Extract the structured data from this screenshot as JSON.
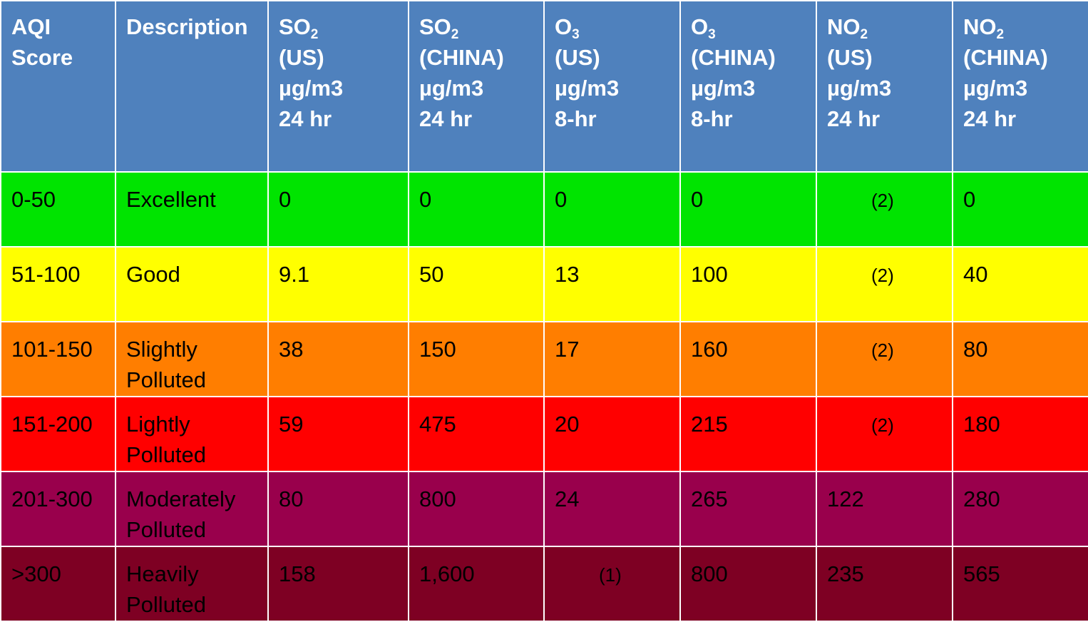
{
  "chart_data": {
    "type": "table",
    "headers": [
      {
        "lines": [
          "AQI",
          "Score"
        ]
      },
      {
        "lines": [
          "Description"
        ]
      },
      {
        "formula_base": "SO",
        "formula_sub": "2",
        "lines": [
          "(US)",
          "µg/m3",
          "24 hr"
        ]
      },
      {
        "formula_base": "SO",
        "formula_sub": "2",
        "lines": [
          "(CHINA)",
          "µg/m3",
          "24 hr"
        ]
      },
      {
        "formula_base": "O",
        "formula_sub": "3",
        "lines": [
          "(US)",
          "µg/m3",
          "8-hr"
        ]
      },
      {
        "formula_base": "O",
        "formula_sub": "3",
        "lines": [
          "(CHINA)",
          "µg/m3",
          "8-hr"
        ]
      },
      {
        "formula_base": "NO",
        "formula_sub": "2",
        "lines": [
          "(US)",
          "µg/m3",
          "24 hr"
        ]
      },
      {
        "formula_base": "NO",
        "formula_sub": "2",
        "lines": [
          "(CHINA)",
          "µg/m3",
          "24 hr"
        ]
      }
    ],
    "rows": [
      {
        "color": "#00e400",
        "text_color": "#000000",
        "cells": [
          [
            "0-50"
          ],
          [
            "Excellent"
          ],
          [
            "0"
          ],
          [
            "0"
          ],
          [
            "0"
          ],
          [
            "0"
          ],
          [
            "(2)"
          ],
          [
            "0"
          ]
        ]
      },
      {
        "color": "#ffff00",
        "text_color": "#000000",
        "cells": [
          [
            "51-100"
          ],
          [
            "Good"
          ],
          [
            "9.1"
          ],
          [
            "50"
          ],
          [
            "13"
          ],
          [
            "100"
          ],
          [
            "(2)"
          ],
          [
            "40"
          ]
        ]
      },
      {
        "color": "#ff7e00",
        "text_color": "#000000",
        "cells": [
          [
            "101-150"
          ],
          [
            "Slightly",
            "Polluted"
          ],
          [
            "38"
          ],
          [
            "150"
          ],
          [
            "17"
          ],
          [
            "160"
          ],
          [
            "(2)"
          ],
          [
            "80"
          ]
        ]
      },
      {
        "color": "#ff0000",
        "text_color": "#000000",
        "cells": [
          [
            "151-200"
          ],
          [
            "Lightly",
            "Polluted"
          ],
          [
            "59"
          ],
          [
            "475"
          ],
          [
            "20"
          ],
          [
            "215"
          ],
          [
            "(2)"
          ],
          [
            "180"
          ]
        ]
      },
      {
        "color": "#99004c",
        "text_color": "#000000",
        "cells": [
          [
            "201-300"
          ],
          [
            "Moderately",
            "Polluted"
          ],
          [
            "80"
          ],
          [
            "800"
          ],
          [
            "24"
          ],
          [
            "265"
          ],
          [
            "122"
          ],
          [
            "280"
          ]
        ]
      },
      {
        "color": "#7e0023",
        "text_color": "#000000",
        "cells": [
          [
            ">300"
          ],
          [
            "Heavily",
            "Polluted"
          ],
          [
            "158"
          ],
          [
            "1,600"
          ],
          [
            "(1)"
          ],
          [
            "800"
          ],
          [
            "235"
          ],
          [
            "565"
          ]
        ]
      }
    ],
    "notes": [
      "(1)",
      "(2)"
    ],
    "header_color": "#4f81bd",
    "header_text_color": "#ffffff",
    "border_color": "#ffffff"
  }
}
